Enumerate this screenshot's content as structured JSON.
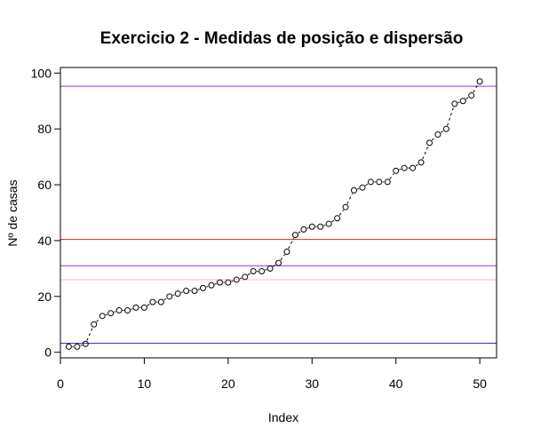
{
  "chart_data": {
    "type": "scatter",
    "title": "Exercicio 2 - Medidas de posição e dispersão",
    "xlabel": "Index",
    "ylabel": "Nº de casas",
    "xlim": [
      0,
      52
    ],
    "ylim": [
      -2,
      102
    ],
    "xticks": [
      0,
      10,
      20,
      30,
      40,
      50
    ],
    "yticks": [
      0,
      20,
      40,
      60,
      80,
      100
    ],
    "grid": false,
    "x": [
      1,
      2,
      3,
      4,
      5,
      6,
      7,
      8,
      9,
      10,
      11,
      12,
      13,
      14,
      15,
      16,
      17,
      18,
      19,
      20,
      21,
      22,
      23,
      24,
      25,
      26,
      27,
      28,
      29,
      30,
      31,
      32,
      33,
      34,
      35,
      36,
      37,
      38,
      39,
      40,
      41,
      42,
      43,
      44,
      45,
      46,
      47,
      48,
      49,
      50
    ],
    "y": [
      2,
      2,
      3,
      10,
      13,
      14,
      15,
      15,
      16,
      16,
      18,
      18,
      20,
      21,
      22,
      22,
      23,
      24,
      25,
      25,
      26,
      27,
      29,
      29,
      30,
      32,
      36,
      42,
      44,
      45,
      45,
      46,
      48,
      52,
      58,
      59,
      61,
      61,
      61,
      65,
      66,
      66,
      68,
      75,
      78,
      80,
      89,
      90,
      92,
      97
    ],
    "hlines": [
      {
        "y": 95.3,
        "color": "#9933cc"
      },
      {
        "y": 40.4,
        "color": "#dd2222"
      },
      {
        "y": 31.0,
        "color": "#9933cc"
      },
      {
        "y": 26.0,
        "color": "#ffb6c1"
      },
      {
        "y": 3.2,
        "color": "#2222bb"
      }
    ]
  }
}
